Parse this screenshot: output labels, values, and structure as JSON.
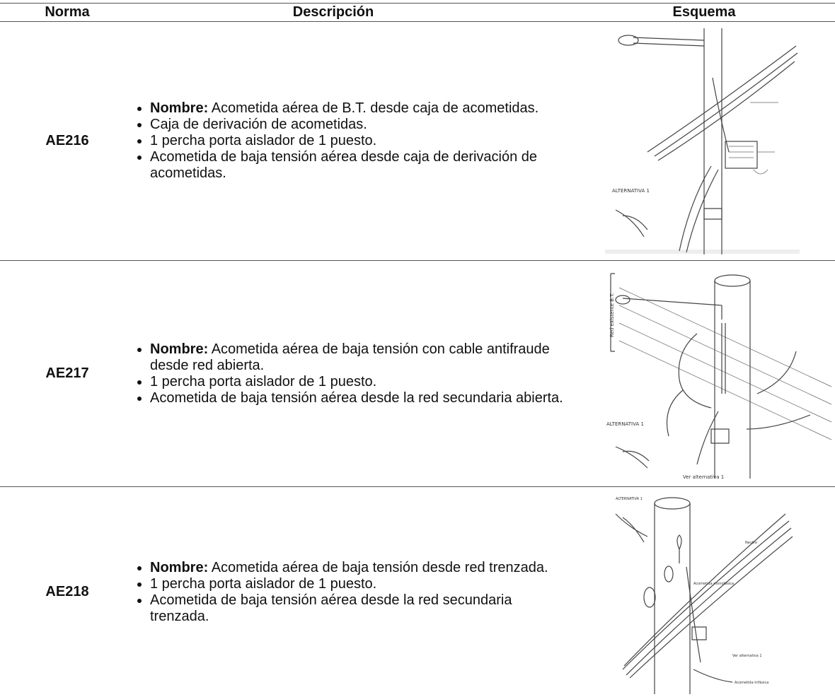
{
  "table": {
    "headers": [
      "Norma",
      "Descripción",
      "Esquema"
    ],
    "rows": [
      {
        "norma": "AE216",
        "items": [
          {
            "label": "Nombre:",
            "text": "Acometida aérea de B.T. desde caja de acometidas."
          },
          {
            "text": "Caja de derivación de acometidas."
          },
          {
            "text": "1 percha porta aislador de 1 puesto."
          },
          {
            "text": "Acometida de baja tensión aérea desde caja de derivación de acometidas."
          }
        ],
        "schema_labels": [
          "ALTERNATIVA 1"
        ]
      },
      {
        "norma": "AE217",
        "items": [
          {
            "label": "Nombre:",
            "text": "Acometida aérea de baja tensión con cable antifraude desde red abierta."
          },
          {
            "text": "1 percha porta aislador de 1 puesto."
          },
          {
            "text": "Acometida de baja tensión aérea desde la red secundaria abierta."
          }
        ],
        "schema_labels": [
          "Red existente B.T.",
          "ALTERNATIVA 1",
          "Ver alternativa 1"
        ]
      },
      {
        "norma": "AE218",
        "items": [
          {
            "label": "Nombre:",
            "text": "Acometida aérea de baja tensión desde red trenzada."
          },
          {
            "text": "1 percha porta aislador de 1 puesto."
          },
          {
            "text": "Acometida de baja tensión aérea desde la red secundaria trenzada."
          }
        ],
        "schema_labels": [
          "ALTERNATIVA 1",
          "Neutro",
          "Acometida monofásica",
          "Ver alternativa 1",
          "Acometida trifásica"
        ]
      }
    ]
  }
}
